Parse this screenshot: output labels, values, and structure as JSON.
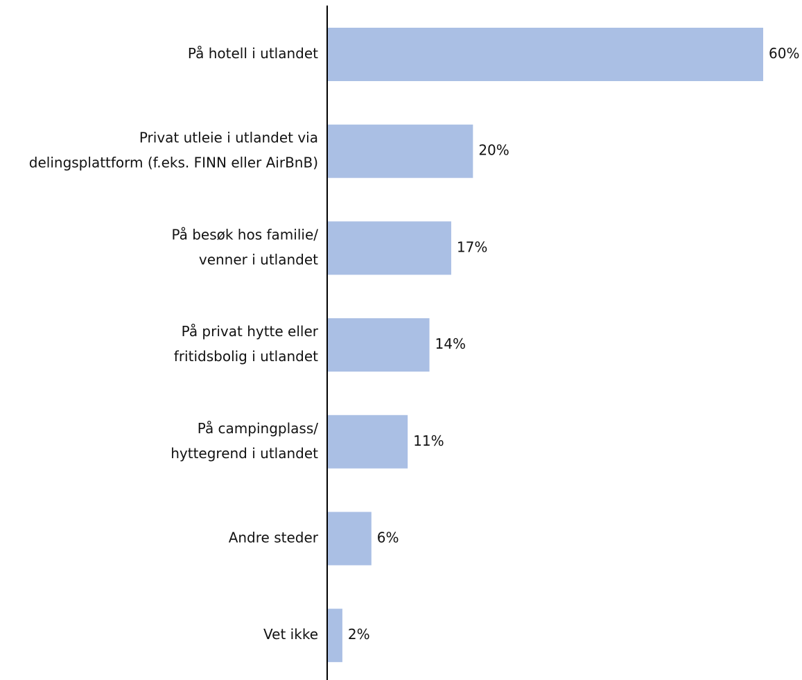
{
  "chart_data": {
    "type": "bar",
    "orientation": "horizontal",
    "categories": [
      [
        "På hotell i utlandet"
      ],
      [
        "Privat utleie i utlandet via",
        "delingsplattform (f.eks. FINN eller AirBnB)"
      ],
      [
        "På besøk hos familie/",
        "venner i utlandet"
      ],
      [
        "På privat hytte eller",
        "fritidsbolig i utlandet"
      ],
      [
        "På campingplass/",
        "hyttegrend i utlandet"
      ],
      [
        "Andre steder"
      ],
      [
        "Vet ikke"
      ]
    ],
    "values": [
      60,
      20,
      17,
      14,
      11,
      6,
      2
    ],
    "value_labels": [
      "60%",
      "20%",
      "17%",
      "14%",
      "11%",
      "6%",
      "2%"
    ],
    "xlim": [
      0,
      60
    ],
    "unit": "%",
    "title": "",
    "xlabel": "",
    "ylabel": "",
    "grid": false,
    "legend": "none",
    "bar_color": "#aabfe4",
    "axis_color": "#000000",
    "text_color": "#111111"
  }
}
